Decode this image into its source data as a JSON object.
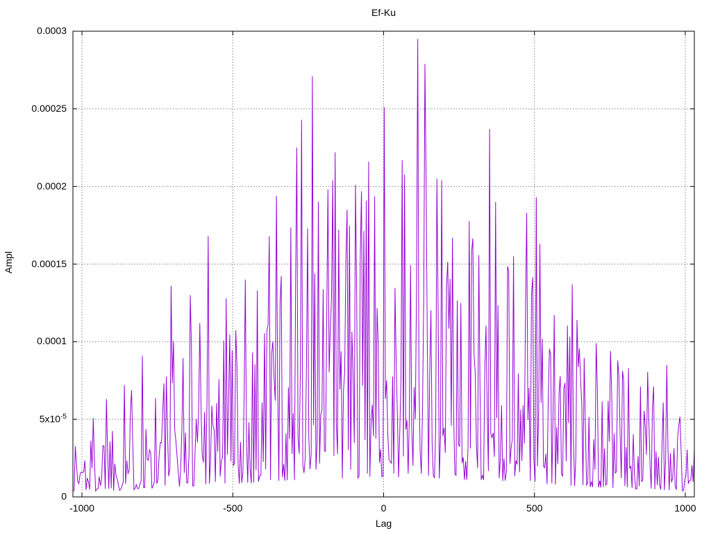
{
  "title": "Ef-Ku",
  "axes": {
    "x_label": "Lag",
    "y_label": "Ampl"
  },
  "chart_data": {
    "type": "line",
    "title": "Ef-Ku",
    "xlabel": "Lag",
    "ylabel": "Ampl",
    "xlim": [
      -1030,
      1030
    ],
    "ylim": [
      0,
      0.0003
    ],
    "grid": true,
    "legend": "none",
    "line_color": "#9400d3",
    "grid_color": "#808080",
    "border_color": "#000000",
    "background_color": "#ffffff",
    "x_ticks": [
      {
        "value": -1000,
        "label": "-1000"
      },
      {
        "value": -500,
        "label": "-500"
      },
      {
        "value": 0,
        "label": "0"
      },
      {
        "value": 500,
        "label": "500"
      },
      {
        "value": 1000,
        "label": "1000"
      }
    ],
    "y_ticks": [
      {
        "value": 0,
        "label": "0"
      },
      {
        "value": 5e-05,
        "label": "5x10^-5"
      },
      {
        "value": 0.0001,
        "label": "0.0001"
      },
      {
        "value": 0.00015,
        "label": "0.00015"
      },
      {
        "value": 0.0002,
        "label": "0.0002"
      },
      {
        "value": 0.00025,
        "label": "0.00025"
      },
      {
        "value": 0.0003,
        "label": "0.0003"
      }
    ],
    "series_description": "Noisy spike amplitudes vs lag; envelope rises from ~3e-5 at the edges to ~2e-4 near lag 0",
    "envelope_points": [
      [
        -1030,
        5e-05
      ],
      [
        -960,
        6e-05
      ],
      [
        -880,
        7e-05
      ],
      [
        -800,
        8e-05
      ],
      [
        -720,
        0.000105
      ],
      [
        -640,
        0.000115
      ],
      [
        -560,
        0.00013
      ],
      [
        -480,
        0.000135
      ],
      [
        -400,
        0.000155
      ],
      [
        -320,
        0.000175
      ],
      [
        -240,
        0.000195
      ],
      [
        -160,
        0.000195
      ],
      [
        -80,
        0.0002
      ],
      [
        0,
        0.000205
      ],
      [
        80,
        0.00021
      ],
      [
        160,
        0.0002
      ],
      [
        240,
        0.000185
      ],
      [
        320,
        0.00018
      ],
      [
        400,
        0.00017
      ],
      [
        480,
        0.000165
      ],
      [
        560,
        0.00013
      ],
      [
        640,
        0.000115
      ],
      [
        720,
        0.0001
      ],
      [
        800,
        9e-05
      ],
      [
        880,
        8e-05
      ],
      [
        960,
        6.5e-05
      ],
      [
        1030,
        5.5e-05
      ]
    ],
    "notable_peaks": [
      [
        -920,
        6.3e-05
      ],
      [
        -860,
        7.2e-05
      ],
      [
        -800,
        9.1e-05
      ],
      [
        -703,
        0.000136
      ],
      [
        -640,
        0.00013
      ],
      [
        -610,
        0.000112
      ],
      [
        -580,
        0.000168
      ],
      [
        -520,
        0.000128
      ],
      [
        -460,
        0.00014
      ],
      [
        -420,
        0.000133
      ],
      [
        -379,
        0.000168
      ],
      [
        -355,
        0.000194
      ],
      [
        -289,
        0.000225
      ],
      [
        -271,
        0.000243
      ],
      [
        -238,
        0.000271
      ],
      [
        -215,
        0.00019
      ],
      [
        -186,
        0.000198
      ],
      [
        -169,
        0.000204
      ],
      [
        -160,
        0.000222
      ],
      [
        -120,
        0.000185
      ],
      [
        -93,
        0.000201
      ],
      [
        -50,
        0.000216
      ],
      [
        0,
        0.000251
      ],
      [
        60,
        0.000217
      ],
      [
        115,
        0.000295
      ],
      [
        138,
        0.000279
      ],
      [
        176,
        0.000205
      ],
      [
        194,
        0.000204
      ],
      [
        230,
        0.000167
      ],
      [
        290,
        0.000158
      ],
      [
        350,
        0.000237
      ],
      [
        373,
        0.00019
      ],
      [
        430,
        0.000155
      ],
      [
        474,
        0.000183
      ],
      [
        506,
        0.000193
      ],
      [
        518,
        0.000163
      ],
      [
        627,
        0.000137
      ],
      [
        641,
        0.000114
      ],
      [
        704,
        9.9e-05
      ],
      [
        751,
        9.4e-05
      ],
      [
        896,
        7.1e-05
      ],
      [
        939,
        8.5e-05
      ]
    ],
    "noise_model": {
      "seed": 1337,
      "samples": 520,
      "base_fraction": 0.06,
      "shape_exponent": 2.3,
      "min_value": 1.5e-06
    }
  }
}
